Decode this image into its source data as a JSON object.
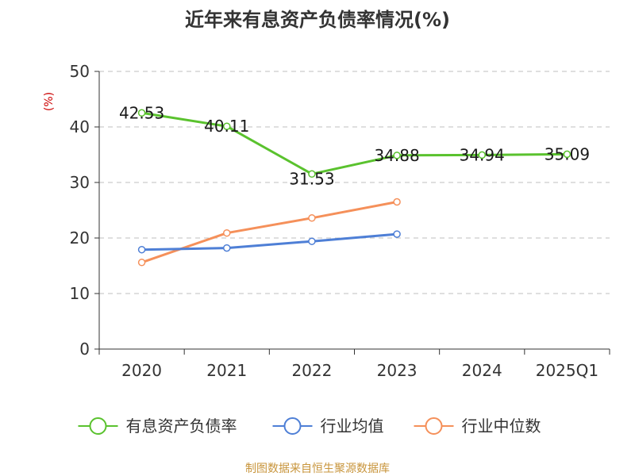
{
  "chart_data": {
    "type": "line",
    "title": "近年来有息资产负债率情况(%)",
    "ylabel": "(%)",
    "xlabel": "",
    "categories": [
      "2020",
      "2021",
      "2022",
      "2023",
      "2024",
      "2025Q1"
    ],
    "ylim": [
      0,
      50
    ],
    "yticks": [
      0,
      10,
      20,
      30,
      40,
      50
    ],
    "grid": true,
    "legend_position": "bottom",
    "series": [
      {
        "name": "有息资产负债率",
        "color": "#5ac22e",
        "values": [
          42.53,
          40.11,
          31.53,
          34.88,
          34.94,
          35.09
        ],
        "labels": [
          "42.53",
          "40.11",
          "31.53",
          "34.88",
          "34.94",
          "35.09"
        ]
      },
      {
        "name": "行业均值",
        "color": "#4e7fd6",
        "values": [
          17.9,
          18.2,
          19.4,
          20.7,
          null,
          null
        ]
      },
      {
        "name": "行业中位数",
        "color": "#f5905a",
        "values": [
          15.6,
          20.9,
          23.6,
          26.5,
          null,
          null
        ]
      }
    ]
  },
  "source": {
    "text": "制图数据来自恒生聚源数据库",
    "color": "#c8953c"
  },
  "colors": {
    "unit_label": "#cc0000",
    "grid": "#cccccc",
    "axis": "#333333"
  }
}
